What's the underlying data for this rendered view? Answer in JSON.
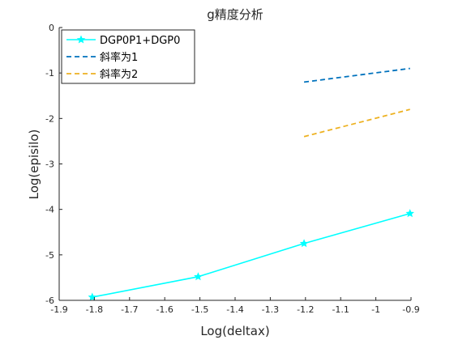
{
  "chart_data": {
    "type": "line",
    "title": "g精度分析",
    "xlabel": "Log(deltax)",
    "ylabel": "Log(episilo)",
    "xlim": [
      -1.9,
      -0.9
    ],
    "ylim": [
      -6,
      0
    ],
    "xticks": [
      -1.9,
      -1.8,
      -1.7,
      -1.6,
      -1.5,
      -1.4,
      -1.3,
      -1.2,
      -1.1,
      -1,
      -0.9
    ],
    "xtick_labels": [
      "-1.9",
      "-1.8",
      "-1.7",
      "-1.6",
      "-1.5",
      "-1.4",
      "-1.3",
      "-1.2",
      "-1.1",
      "-1",
      "-0.9"
    ],
    "yticks": [
      -6,
      -5,
      -4,
      -3,
      -2,
      -1,
      0
    ],
    "ytick_labels": [
      "-6",
      "-5",
      "-4",
      "-3",
      "-2",
      "-1",
      "0"
    ],
    "grid": false,
    "legend_position": "top-left",
    "series": [
      {
        "name": "DGP0P1+DGP0",
        "color": "#00ffff",
        "style": "solid",
        "marker": "star",
        "x": [
          -1.806,
          -1.505,
          -1.204,
          -0.903
        ],
        "y": [
          -5.93,
          -5.48,
          -4.75,
          -4.09
        ]
      },
      {
        "name": "斜率为1",
        "color": "#0072bd",
        "style": "dashed",
        "marker": "none",
        "x": [
          -1.204,
          -0.903
        ],
        "y": [
          -1.2,
          -0.9
        ]
      },
      {
        "name": "斜率为2",
        "color": "#edb120",
        "style": "dashed",
        "marker": "none",
        "x": [
          -1.204,
          -0.903
        ],
        "y": [
          -2.4,
          -1.8
        ]
      }
    ]
  }
}
